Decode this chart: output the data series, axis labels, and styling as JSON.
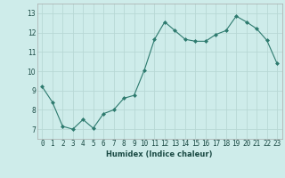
{
  "x": [
    0,
    1,
    2,
    3,
    4,
    5,
    6,
    7,
    8,
    9,
    10,
    11,
    12,
    13,
    14,
    15,
    16,
    17,
    18,
    19,
    20,
    21,
    22,
    23
  ],
  "y": [
    9.2,
    8.4,
    7.15,
    7.0,
    7.5,
    7.05,
    7.8,
    8.0,
    8.6,
    8.75,
    10.05,
    11.65,
    12.55,
    12.1,
    11.65,
    11.55,
    11.55,
    11.9,
    12.1,
    12.85,
    12.55,
    12.2,
    11.6,
    10.4
  ],
  "line_color": "#2d7a6e",
  "marker": "D",
  "marker_size": 2.0,
  "bg_color": "#ceecea",
  "grid_color": "#b8d8d5",
  "xlabel": "Humidex (Indice chaleur)",
  "ylim": [
    6.5,
    13.5
  ],
  "xlim": [
    -0.5,
    23.5
  ],
  "yticks": [
    7,
    8,
    9,
    10,
    11,
    12,
    13
  ],
  "xticks": [
    0,
    1,
    2,
    3,
    4,
    5,
    6,
    7,
    8,
    9,
    10,
    11,
    12,
    13,
    14,
    15,
    16,
    17,
    18,
    19,
    20,
    21,
    22,
    23
  ],
  "xlabel_fontsize": 6.0,
  "tick_fontsize": 5.5
}
